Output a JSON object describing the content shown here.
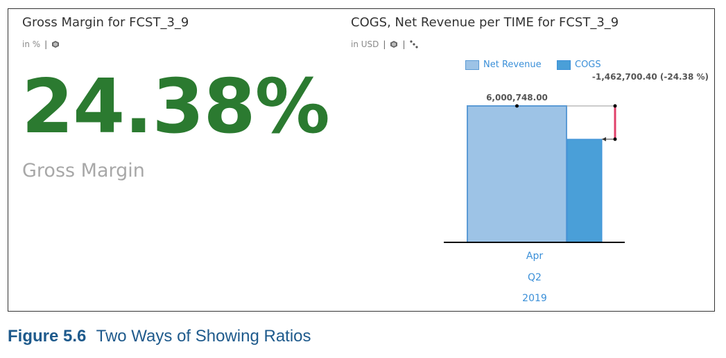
{
  "kpi_tile": {
    "title": "Gross Margin for FCST_3_9",
    "unit": "in %",
    "value": "24.38%",
    "label": "Gross Margin"
  },
  "chart_tile": {
    "title": "COGS, Net Revenue per TIME for FCST_3_9",
    "unit": "in USD",
    "legend": [
      {
        "name": "Net Revenue",
        "color": "#9dc3e6"
      },
      {
        "name": "COGS",
        "color": "#4a9fd8"
      }
    ],
    "variance_label": "-1,462,700.40 (-24.38 %)",
    "value_label": "6,000,748.00",
    "axis_labels": [
      "Apr",
      "Q2",
      "2019"
    ]
  },
  "chart_data": {
    "type": "bar",
    "categories": [
      "Apr Q2 2019"
    ],
    "series": [
      {
        "name": "Net Revenue",
        "values": [
          6000748.0
        ]
      },
      {
        "name": "COGS",
        "values": [
          4538047.6
        ]
      }
    ],
    "title": "COGS, Net Revenue per TIME for FCST_3_9",
    "xlabel": "",
    "ylabel": "",
    "grid": false,
    "legend_position": "top"
  },
  "caption": {
    "number": "Figure 5.6",
    "text": "Two Ways of Showing Ratios"
  }
}
